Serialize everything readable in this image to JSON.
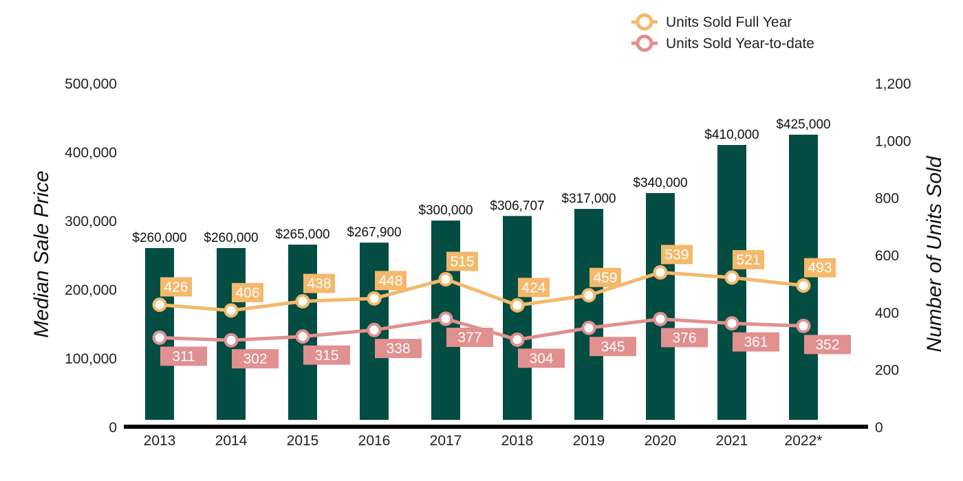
{
  "chart_data": {
    "type": "bar",
    "categories": [
      "2013",
      "2014",
      "2015",
      "2016",
      "2017",
      "2018",
      "2019",
      "2020",
      "2021",
      "2022*"
    ],
    "bar_series": {
      "name": "Median Sale Price",
      "values": [
        260000,
        260000,
        265000,
        267900,
        300000,
        306707,
        317000,
        340000,
        410000,
        425000
      ],
      "labels": [
        "$260,000",
        "$260,000",
        "$265,000",
        "$267,900",
        "$300,000",
        "$306,707",
        "$317,000",
        "$340,000",
        "$410,000",
        "$425,000"
      ]
    },
    "line_series": [
      {
        "name": "Units Sold Full Year",
        "values": [
          426,
          406,
          438,
          448,
          515,
          424,
          459,
          539,
          521,
          493
        ],
        "label_position": "above"
      },
      {
        "name": "Units Sold Year-to-date",
        "values": [
          311,
          302,
          315,
          338,
          377,
          304,
          345,
          376,
          361,
          352
        ],
        "label_position": "below"
      }
    ],
    "y_left": {
      "label": "Median Sale Price",
      "ylim": [
        0,
        500000
      ],
      "ticks": [
        0,
        100000,
        200000,
        300000,
        400000,
        500000
      ],
      "tick_labels": [
        "0",
        "100,000",
        "200,000",
        "300,000",
        "400,000",
        "500,000"
      ]
    },
    "y_right": {
      "label": "Number of Units Sold",
      "ylim": [
        0,
        1200
      ],
      "ticks": [
        0,
        200,
        400,
        600,
        800,
        1000,
        1200
      ],
      "tick_labels": [
        "0",
        "200",
        "400",
        "600",
        "800",
        "1,000",
        "1,200"
      ]
    },
    "legend": {
      "position": "top-right",
      "entries": [
        "Units Sold Full Year",
        "Units Sold Year-to-date"
      ]
    },
    "grid": false
  },
  "colors": {
    "bar": "#034d43",
    "full_year": "#f4b96c",
    "ytd": "#e0908f",
    "axis": "#000000"
  }
}
